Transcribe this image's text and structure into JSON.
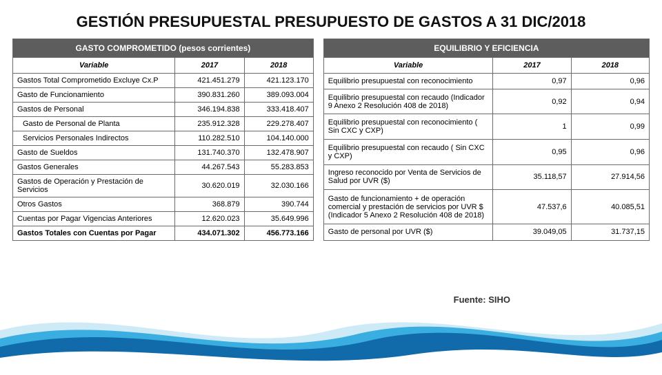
{
  "title": "GESTIÓN PRESUPUESTAL PRESUPUESTO DE GASTOS A 31 DIC/2018",
  "source": "Fuente: SIHO",
  "leftTable": {
    "header": "GASTO COMPROMETIDO (pesos corrientes)",
    "columns": [
      "Variable",
      "2017",
      "2018"
    ],
    "rows": [
      {
        "label": "Gastos Total Comprometido Excluye Cx.P",
        "v2017": "421.451.279",
        "v2018": "421.123.170",
        "indent": false,
        "bold": false
      },
      {
        "label": "Gasto de Funcionamiento",
        "v2017": "390.831.260",
        "v2018": "389.093.004",
        "indent": false,
        "bold": false
      },
      {
        "label": "Gastos de Personal",
        "v2017": "346.194.838",
        "v2018": "333.418.407",
        "indent": false,
        "bold": false
      },
      {
        "label": "Gasto de Personal de Planta",
        "v2017": "235.912.328",
        "v2018": "229.278.407",
        "indent": true,
        "bold": false
      },
      {
        "label": "Servicios Personales Indirectos",
        "v2017": "110.282.510",
        "v2018": "104.140.000",
        "indent": true,
        "bold": false
      },
      {
        "label": "Gasto de Sueldos",
        "v2017": "131.740.370",
        "v2018": "132.478.907",
        "indent": false,
        "bold": false
      },
      {
        "label": "Gastos Generales",
        "v2017": "44.267.543",
        "v2018": "55.283.853",
        "indent": false,
        "bold": false
      },
      {
        "label": "Gastos de Operación y Prestación de Servicios",
        "v2017": "30.620.019",
        "v2018": "32.030.166",
        "indent": false,
        "bold": false
      },
      {
        "label": "Otros Gastos",
        "v2017": "368.879",
        "v2018": "390.744",
        "indent": false,
        "bold": false
      },
      {
        "label": "Cuentas por Pagar Vigencias Anteriores",
        "v2017": "12.620.023",
        "v2018": "35.649.996",
        "indent": false,
        "bold": false
      },
      {
        "label": "Gastos Totales con Cuentas por Pagar",
        "v2017": "434.071.302",
        "v2018": "456.773.166",
        "indent": false,
        "bold": true
      }
    ]
  },
  "rightTable": {
    "header": "EQUILIBRIO Y EFICIENCIA",
    "columns": [
      "Variable",
      "2017",
      "2018"
    ],
    "rows": [
      {
        "label": "Equilibrio presupuestal con reconocimiento",
        "v2017": "0,97",
        "v2018": "0,96"
      },
      {
        "label": "Equilibrio presupuestal con recaudo (Indicador 9 Anexo 2 Resolución 408 de 2018)",
        "v2017": "0,92",
        "v2018": "0,94"
      },
      {
        "label": "Equilibrio presupuestal con reconocimiento ( Sin CXC y CXP)",
        "v2017": "1",
        "v2018": "0,99"
      },
      {
        "label": "Equilibrio presupuestal con recaudo ( Sin CXC y CXP)",
        "v2017": "0,95",
        "v2018": "0,96"
      },
      {
        "label": "Ingreso reconocido por Venta de Servicios de Salud por UVR ($)",
        "v2017": "35.118,57",
        "v2018": "27.914,56"
      },
      {
        "label": "Gasto de funcionamiento + de operación comercial y prestación de servicios por UVR $ (Indicador 5 Anexo 2 Resolución 408 de 2018)",
        "v2017": "47.537,6",
        "v2018": "40.085,51"
      },
      {
        "label": "Gasto de personal por UVR ($)",
        "v2017": "39.049,05",
        "v2018": "31.737,15"
      }
    ]
  },
  "styles": {
    "page_bg": "#ffffff",
    "title_color": "#111111",
    "title_fontsize": 22,
    "table_border_color": "#6a6a6a",
    "header_bg": "#5d5d5d",
    "header_text": "#ffffff",
    "body_fontsize": 11,
    "wave_colors": [
      "#c9e8f6",
      "#2aa6de",
      "#0a5fa0",
      "#ffffff"
    ]
  }
}
